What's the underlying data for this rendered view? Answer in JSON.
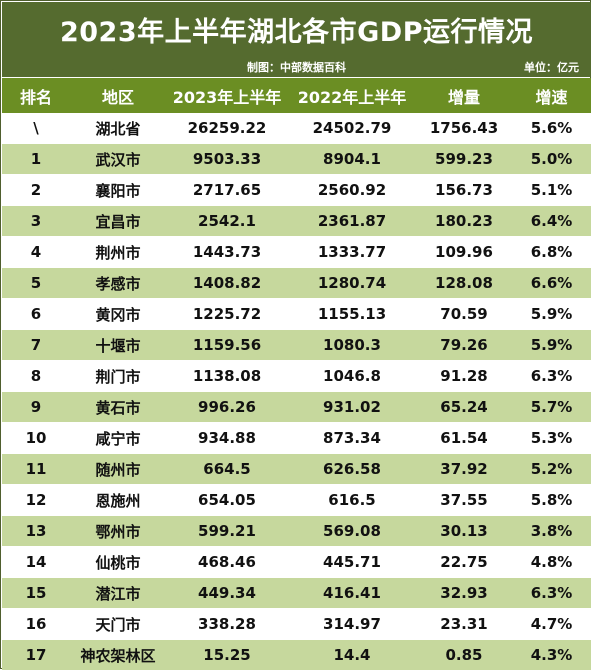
{
  "title": "2023年上半年湖北各市GDP运行情况",
  "credit": "制图：中部数据百科",
  "unit": "单位：亿元",
  "columns": [
    "排名",
    "地区",
    "2023年上半年",
    "2022年上半年",
    "增量",
    "增速"
  ],
  "colors": {
    "title_bg": "#556b2f",
    "header_bg": "#6b8e23",
    "stripe": "#c6d89d"
  },
  "rows": [
    {
      "rank": "\\",
      "region": "湖北省",
      "y2023": "26259.22",
      "y2022": "24502.79",
      "increase": "1756.43",
      "rate": "5.6%"
    },
    {
      "rank": "1",
      "region": "武汉市",
      "y2023": "9503.33",
      "y2022": "8904.1",
      "increase": "599.23",
      "rate": "5.0%"
    },
    {
      "rank": "2",
      "region": "襄阳市",
      "y2023": "2717.65",
      "y2022": "2560.92",
      "increase": "156.73",
      "rate": "5.1%"
    },
    {
      "rank": "3",
      "region": "宜昌市",
      "y2023": "2542.1",
      "y2022": "2361.87",
      "increase": "180.23",
      "rate": "6.4%"
    },
    {
      "rank": "4",
      "region": "荆州市",
      "y2023": "1443.73",
      "y2022": "1333.77",
      "increase": "109.96",
      "rate": "6.8%"
    },
    {
      "rank": "5",
      "region": "孝感市",
      "y2023": "1408.82",
      "y2022": "1280.74",
      "increase": "128.08",
      "rate": "6.6%"
    },
    {
      "rank": "6",
      "region": "黄冈市",
      "y2023": "1225.72",
      "y2022": "1155.13",
      "increase": "70.59",
      "rate": "5.9%"
    },
    {
      "rank": "7",
      "region": "十堰市",
      "y2023": "1159.56",
      "y2022": "1080.3",
      "increase": "79.26",
      "rate": "5.9%"
    },
    {
      "rank": "8",
      "region": "荆门市",
      "y2023": "1138.08",
      "y2022": "1046.8",
      "increase": "91.28",
      "rate": "6.3%"
    },
    {
      "rank": "9",
      "region": "黄石市",
      "y2023": "996.26",
      "y2022": "931.02",
      "increase": "65.24",
      "rate": "5.7%"
    },
    {
      "rank": "10",
      "region": "咸宁市",
      "y2023": "934.88",
      "y2022": "873.34",
      "increase": "61.54",
      "rate": "5.3%"
    },
    {
      "rank": "11",
      "region": "随州市",
      "y2023": "664.5",
      "y2022": "626.58",
      "increase": "37.92",
      "rate": "5.2%"
    },
    {
      "rank": "12",
      "region": "恩施州",
      "y2023": "654.05",
      "y2022": "616.5",
      "increase": "37.55",
      "rate": "5.8%"
    },
    {
      "rank": "13",
      "region": "鄂州市",
      "y2023": "599.21",
      "y2022": "569.08",
      "increase": "30.13",
      "rate": "3.8%"
    },
    {
      "rank": "14",
      "region": "仙桃市",
      "y2023": "468.46",
      "y2022": "445.71",
      "increase": "22.75",
      "rate": "4.8%"
    },
    {
      "rank": "15",
      "region": "潜江市",
      "y2023": "449.34",
      "y2022": "416.41",
      "increase": "32.93",
      "rate": "6.3%"
    },
    {
      "rank": "16",
      "region": "天门市",
      "y2023": "338.28",
      "y2022": "314.97",
      "increase": "23.31",
      "rate": "4.7%"
    },
    {
      "rank": "17",
      "region": "神农架林区",
      "y2023": "15.25",
      "y2022": "14.4",
      "increase": "0.85",
      "rate": "4.3%"
    }
  ]
}
